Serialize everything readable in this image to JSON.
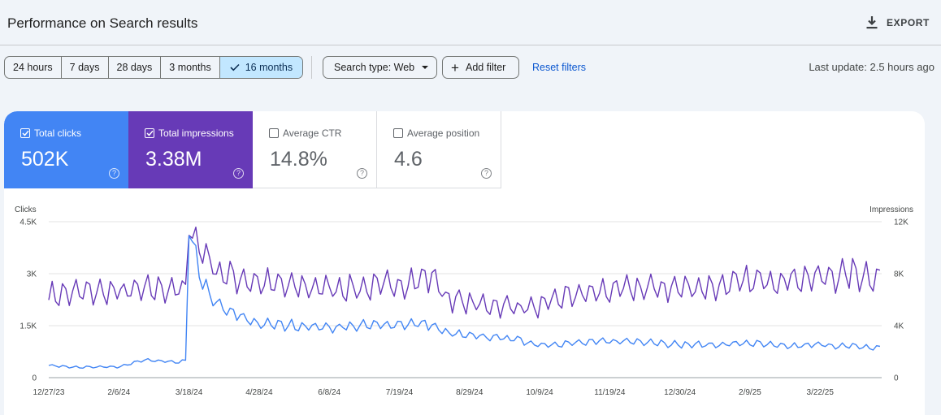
{
  "header": {
    "title": "Performance on Search results",
    "export_label": "EXPORT"
  },
  "toolbar": {
    "ranges": [
      {
        "label": "24 hours",
        "active": false
      },
      {
        "label": "7 days",
        "active": false
      },
      {
        "label": "28 days",
        "active": false
      },
      {
        "label": "3 months",
        "active": false
      },
      {
        "label": "16 months",
        "active": true
      }
    ],
    "search_type_label": "Search type: Web",
    "add_filter_label": "Add filter",
    "reset_filters_label": "Reset filters",
    "last_update": "Last update: 2.5 hours ago"
  },
  "metrics": [
    {
      "label": "Total clicks",
      "value": "502K",
      "checked": true,
      "color": "#4285f4"
    },
    {
      "label": "Total impressions",
      "value": "3.38M",
      "checked": true,
      "color": "#673ab7"
    },
    {
      "label": "Average CTR",
      "value": "14.8%",
      "checked": false
    },
    {
      "label": "Average position",
      "value": "4.6",
      "checked": false
    }
  ],
  "chart_data": {
    "type": "line",
    "left_axis": {
      "label": "Clicks",
      "ticks": [
        "0",
        "1.5K",
        "3K",
        "4.5K"
      ],
      "values": [
        0,
        1500,
        3000,
        4500
      ]
    },
    "right_axis": {
      "label": "Impressions",
      "ticks": [
        "0",
        "4K",
        "8K",
        "12K"
      ],
      "values": [
        0,
        4000,
        8000,
        12000
      ]
    },
    "x_ticks": [
      "12/27/23",
      "2/6/24",
      "3/18/24",
      "4/28/24",
      "6/8/24",
      "7/19/24",
      "8/29/24",
      "10/9/24",
      "11/19/24",
      "12/30/24",
      "2/9/25",
      "3/22/25"
    ],
    "x_range": [
      "2023-12-27",
      "2025-04-27"
    ],
    "grid": true,
    "series": [
      {
        "name": "Clicks",
        "axis": "left",
        "color": "#4285f4",
        "points": [
          [
            "2023-12-27",
            350
          ],
          [
            "2024-01-15",
            300
          ],
          [
            "2024-02-06",
            310
          ],
          [
            "2024-02-20",
            500
          ],
          [
            "2024-03-10",
            450
          ],
          [
            "2024-03-17",
            480
          ],
          [
            "2024-03-18",
            4400
          ],
          [
            "2024-03-20",
            3800
          ],
          [
            "2024-03-25",
            2900
          ],
          [
            "2024-04-01",
            2200
          ],
          [
            "2024-04-10",
            1900
          ],
          [
            "2024-04-28",
            1550
          ],
          [
            "2024-05-20",
            1500
          ],
          [
            "2024-06-08",
            1450
          ],
          [
            "2024-06-30",
            1500
          ],
          [
            "2024-07-19",
            1550
          ],
          [
            "2024-08-05",
            1550
          ],
          [
            "2024-08-15",
            1300
          ],
          [
            "2024-08-29",
            1200
          ],
          [
            "2024-09-20",
            1150
          ],
          [
            "2024-10-09",
            950
          ],
          [
            "2024-10-30",
            1000
          ],
          [
            "2024-11-19",
            1050
          ],
          [
            "2024-12-10",
            1050
          ],
          [
            "2024-12-30",
            950
          ],
          [
            "2025-01-20",
            950
          ],
          [
            "2025-02-09",
            1000
          ],
          [
            "2025-03-01",
            900
          ],
          [
            "2025-03-22",
            950
          ],
          [
            "2025-04-10",
            900
          ],
          [
            "2025-04-27",
            850
          ]
        ]
      },
      {
        "name": "Impressions",
        "axis": "right",
        "color": "#673ab7",
        "points": [
          [
            "2023-12-27",
            6300
          ],
          [
            "2024-01-15",
            6600
          ],
          [
            "2024-02-06",
            6600
          ],
          [
            "2024-02-26",
            6800
          ],
          [
            "2024-03-10",
            6900
          ],
          [
            "2024-03-17",
            6600
          ],
          [
            "2024-03-18",
            12000
          ],
          [
            "2024-03-22",
            10500
          ],
          [
            "2024-04-05",
            8000
          ],
          [
            "2024-04-28",
            7300
          ],
          [
            "2024-05-20",
            7000
          ],
          [
            "2024-06-08",
            6900
          ],
          [
            "2024-06-30",
            6900
          ],
          [
            "2024-07-19",
            7200
          ],
          [
            "2024-08-08",
            7800
          ],
          [
            "2024-08-15",
            6200
          ],
          [
            "2024-08-29",
            5700
          ],
          [
            "2024-09-20",
            5500
          ],
          [
            "2024-10-09",
            5400
          ],
          [
            "2024-10-25",
            6300
          ],
          [
            "2024-11-19",
            6700
          ],
          [
            "2024-12-10",
            6900
          ],
          [
            "2024-12-30",
            6900
          ],
          [
            "2025-01-20",
            7000
          ],
          [
            "2025-02-09",
            7400
          ],
          [
            "2025-03-01",
            7600
          ],
          [
            "2025-03-22",
            7700
          ],
          [
            "2025-04-10",
            8000
          ],
          [
            "2025-04-27",
            7700
          ]
        ]
      }
    ]
  }
}
